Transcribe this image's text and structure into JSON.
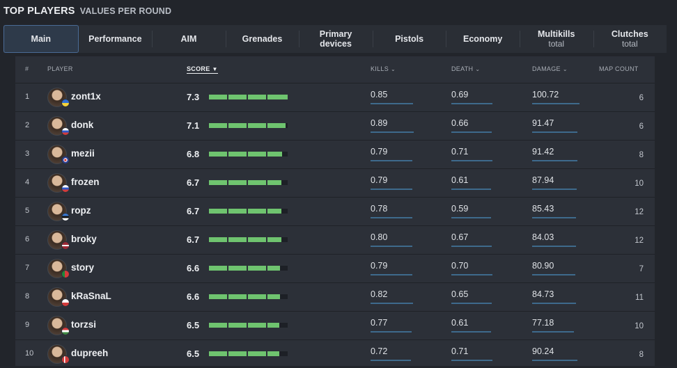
{
  "header": {
    "title": "TOP PLAYERS",
    "subtitle": "VALUES PER ROUND"
  },
  "tabs": [
    {
      "label": "Main",
      "sub": "",
      "active": true
    },
    {
      "label": "Performance",
      "sub": ""
    },
    {
      "label": "AIM",
      "sub": ""
    },
    {
      "label": "Grenades",
      "sub": ""
    },
    {
      "label": "Primary",
      "sub": "devices",
      "sub_bold": true
    },
    {
      "label": "Pistols",
      "sub": ""
    },
    {
      "label": "Economy",
      "sub": ""
    },
    {
      "label": "Multikills",
      "sub": "total"
    },
    {
      "label": "Clutches",
      "sub": "total"
    }
  ],
  "columns": {
    "rank": "#",
    "player": "PLAYER",
    "score": "SCORE",
    "kills": "KILLS",
    "death": "DEATH",
    "damage": "DAMAGE",
    "map_count": "MAP COUNT"
  },
  "colors": {
    "score_bar": "#6fc46f",
    "stat_underline": "#3e6a8c",
    "active_tab_border": "#4a6b96"
  },
  "rows": [
    {
      "rank": "1",
      "name": "zont1x",
      "flag": "ukraine",
      "score": "7.3",
      "score_fraction": 1.0,
      "kills": "0.85",
      "death": "0.69",
      "damage": "100.72",
      "maps": "6"
    },
    {
      "rank": "2",
      "name": "donk",
      "flag": "russia",
      "score": "7.1",
      "score_fraction": 0.97,
      "kills": "0.89",
      "death": "0.66",
      "damage": "91.47",
      "maps": "6"
    },
    {
      "rank": "3",
      "name": "mezii",
      "flag": "united-kingdom",
      "score": "6.8",
      "score_fraction": 0.93,
      "kills": "0.79",
      "death": "0.71",
      "damage": "91.42",
      "maps": "8"
    },
    {
      "rank": "4",
      "name": "frozen",
      "flag": "slovakia",
      "score": "6.7",
      "score_fraction": 0.92,
      "kills": "0.79",
      "death": "0.61",
      "damage": "87.94",
      "maps": "10"
    },
    {
      "rank": "5",
      "name": "ropz",
      "flag": "estonia",
      "score": "6.7",
      "score_fraction": 0.92,
      "kills": "0.78",
      "death": "0.59",
      "damage": "85.43",
      "maps": "12"
    },
    {
      "rank": "6",
      "name": "broky",
      "flag": "latvia",
      "score": "6.7",
      "score_fraction": 0.92,
      "kills": "0.80",
      "death": "0.67",
      "damage": "84.03",
      "maps": "12"
    },
    {
      "rank": "7",
      "name": "story",
      "flag": "portugal",
      "score": "6.6",
      "score_fraction": 0.9,
      "kills": "0.79",
      "death": "0.70",
      "damage": "80.90",
      "maps": "7"
    },
    {
      "rank": "8",
      "name": "kRaSnaL",
      "flag": "poland",
      "score": "6.6",
      "score_fraction": 0.9,
      "kills": "0.82",
      "death": "0.65",
      "damage": "84.73",
      "maps": "11"
    },
    {
      "rank": "9",
      "name": "torzsi",
      "flag": "hungary",
      "score": "6.5",
      "score_fraction": 0.89,
      "kills": "0.77",
      "death": "0.61",
      "damage": "77.18",
      "maps": "10"
    },
    {
      "rank": "10",
      "name": "dupreeh",
      "flag": "denmark",
      "score": "6.5",
      "score_fraction": 0.89,
      "kills": "0.72",
      "death": "0.71",
      "damage": "90.24",
      "maps": "8"
    }
  ]
}
